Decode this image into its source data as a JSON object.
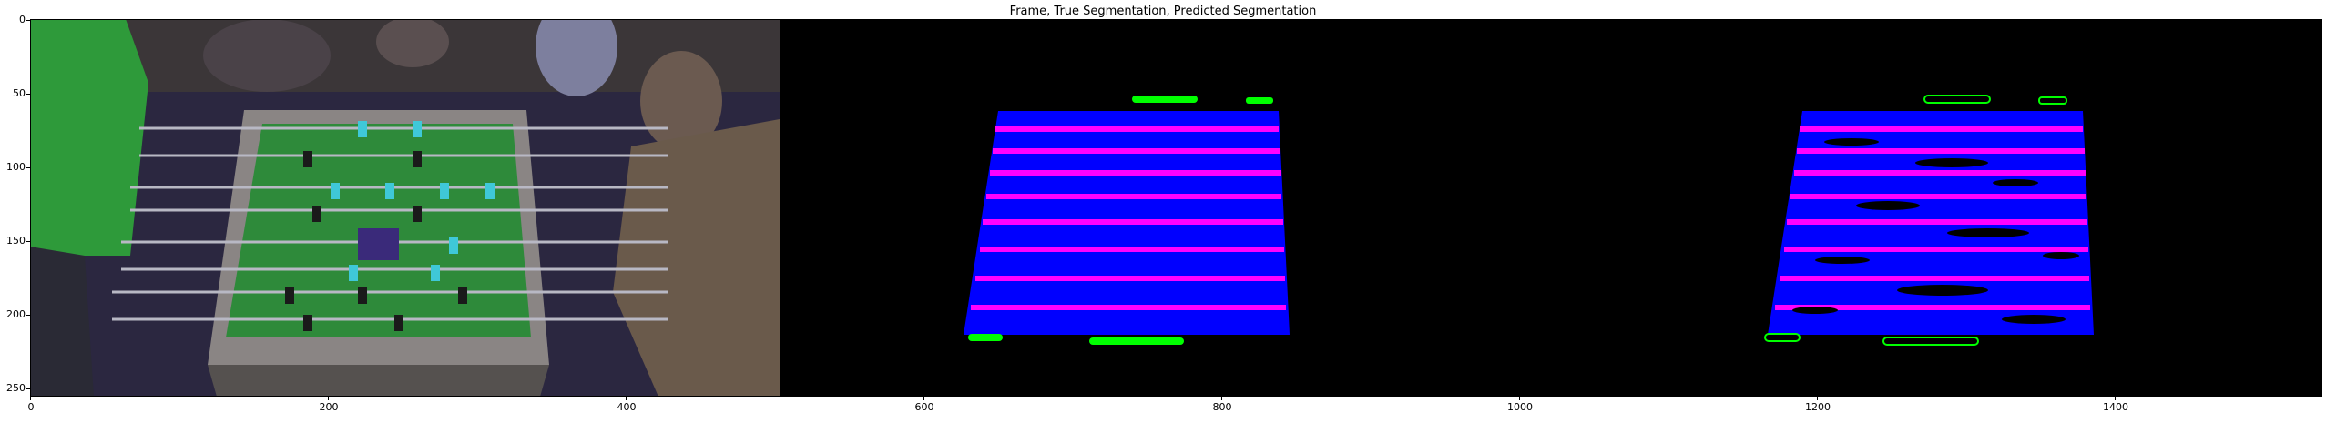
{
  "figure": {
    "title": "Frame, True Segmentation, Predicted Segmentation",
    "x_ticks": [
      "0",
      "200",
      "400",
      "600",
      "800",
      "1000",
      "1200",
      "1400"
    ],
    "y_ticks": [
      "0",
      "50",
      "100",
      "150",
      "200",
      "250"
    ]
  },
  "panels": [
    {
      "name": "frame",
      "description_of_content": ""
    },
    {
      "name": "true-segmentation"
    },
    {
      "name": "predicted-segmentation"
    }
  ],
  "colors": {
    "background": "#000000",
    "table": "#0000ff",
    "rods": "#ff00ff",
    "markers": "#00ff00",
    "prediction_noise": "#000000"
  }
}
